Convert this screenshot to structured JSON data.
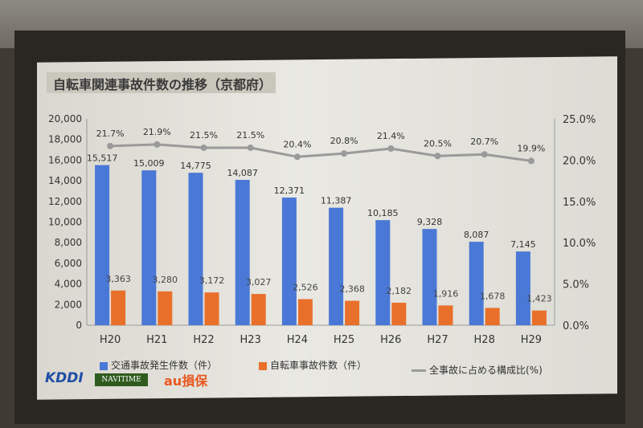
{
  "slide": {
    "title": "自転車関連事故件数の推移（京都府）"
  },
  "logos": {
    "kddi": "KDDI",
    "navitime": "NAVITIME",
    "au": "au損保"
  },
  "legend": {
    "total": "交通事故発生件数（件）",
    "bicycle": "自転車事故件数（件）",
    "ratio": "全事故に占める構成比(%)"
  },
  "colors": {
    "total": "#4a78d6",
    "bicycle": "#e8702a",
    "ratio": "#9a9a9a"
  },
  "chart_data": {
    "type": "bar",
    "title": "自転車関連事故件数の推移（京都府）",
    "categories": [
      "H20",
      "H21",
      "H22",
      "H23",
      "H24",
      "H25",
      "H26",
      "H27",
      "H28",
      "H29"
    ],
    "series": [
      {
        "name": "交通事故発生件数（件）",
        "type": "bar",
        "values": [
          15517,
          15009,
          14775,
          14087,
          12371,
          11387,
          10185,
          9328,
          8087,
          7145
        ],
        "labels": [
          "15,517",
          "15,009",
          "14,775",
          "14,087",
          "12,371",
          "11,387",
          "10,185",
          "9,328",
          "8,087",
          "7,145"
        ]
      },
      {
        "name": "自転車事故件数（件）",
        "type": "bar",
        "values": [
          3363,
          3280,
          3172,
          3027,
          2526,
          2368,
          2182,
          1916,
          1678,
          1423
        ],
        "labels": [
          "3,363",
          "3,280",
          "3,172",
          "3,027",
          "2,526",
          "2,368",
          "2,182",
          "1,916",
          "1,678",
          "1,423"
        ]
      },
      {
        "name": "全事故に占める構成比(%)",
        "type": "line",
        "axis": "right",
        "values": [
          21.7,
          21.9,
          21.5,
          21.5,
          20.4,
          20.8,
          21.4,
          20.5,
          20.7,
          19.9
        ],
        "labels": [
          "21.7%",
          "21.9%",
          "21.5%",
          "21.5%",
          "20.4%",
          "20.8%",
          "21.4%",
          "20.5%",
          "20.7%",
          "19.9%"
        ]
      }
    ],
    "ylim": [
      0,
      20000
    ],
    "yticks": [
      "0",
      "2,000",
      "4,000",
      "6,000",
      "8,000",
      "10,000",
      "12,000",
      "14,000",
      "16,000",
      "18,000",
      "20,000"
    ],
    "y2lim": [
      0,
      25
    ],
    "y2ticks": [
      "0.0%",
      "5.0%",
      "10.0%",
      "15.0%",
      "20.0%",
      "25.0%"
    ],
    "grid": false,
    "legend_position": "bottom"
  }
}
